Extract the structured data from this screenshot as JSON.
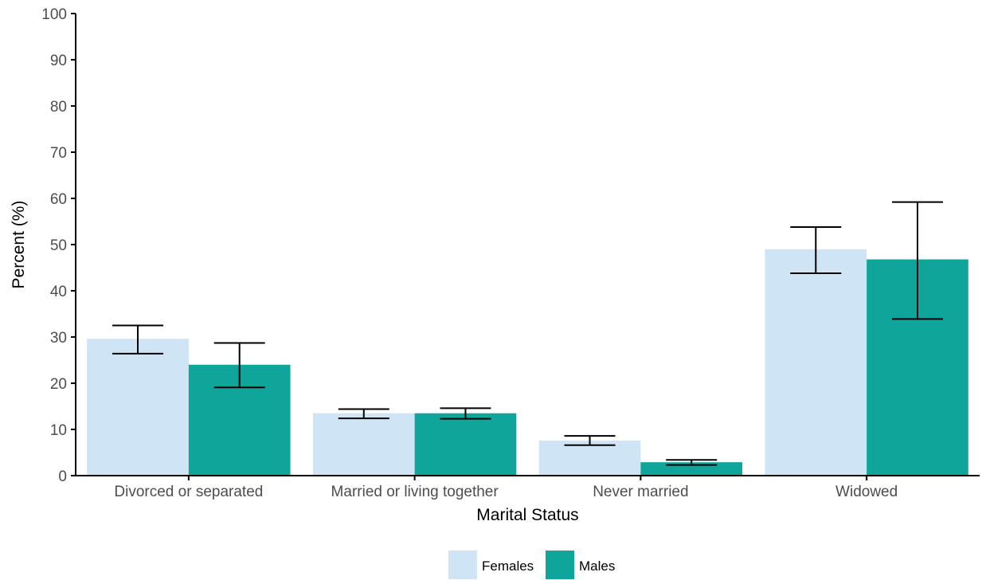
{
  "chart_data": {
    "type": "bar",
    "title": "",
    "xlabel": "Marital Status",
    "ylabel": "Percent (%)",
    "ylim": [
      0,
      100
    ],
    "yticks": [
      0,
      10,
      20,
      30,
      40,
      50,
      60,
      70,
      80,
      90,
      100
    ],
    "categories": [
      "Divorced or separated",
      "Married or living together",
      "Never married",
      "Widowed"
    ],
    "series": [
      {
        "name": "Females",
        "color": "#cfe4f4",
        "values": [
          29.6,
          13.5,
          7.6,
          49.0
        ],
        "error_low": [
          26.4,
          12.4,
          6.6,
          43.8
        ],
        "error_high": [
          32.5,
          14.4,
          8.6,
          53.8
        ]
      },
      {
        "name": "Males",
        "color": "#0fa59b",
        "values": [
          24.0,
          13.5,
          2.9,
          46.8
        ],
        "error_low": [
          19.1,
          12.3,
          2.3,
          33.9
        ],
        "error_high": [
          28.7,
          14.6,
          3.4,
          59.2
        ]
      }
    ],
    "grid": false,
    "legend": "bottom",
    "error_bars": true
  }
}
